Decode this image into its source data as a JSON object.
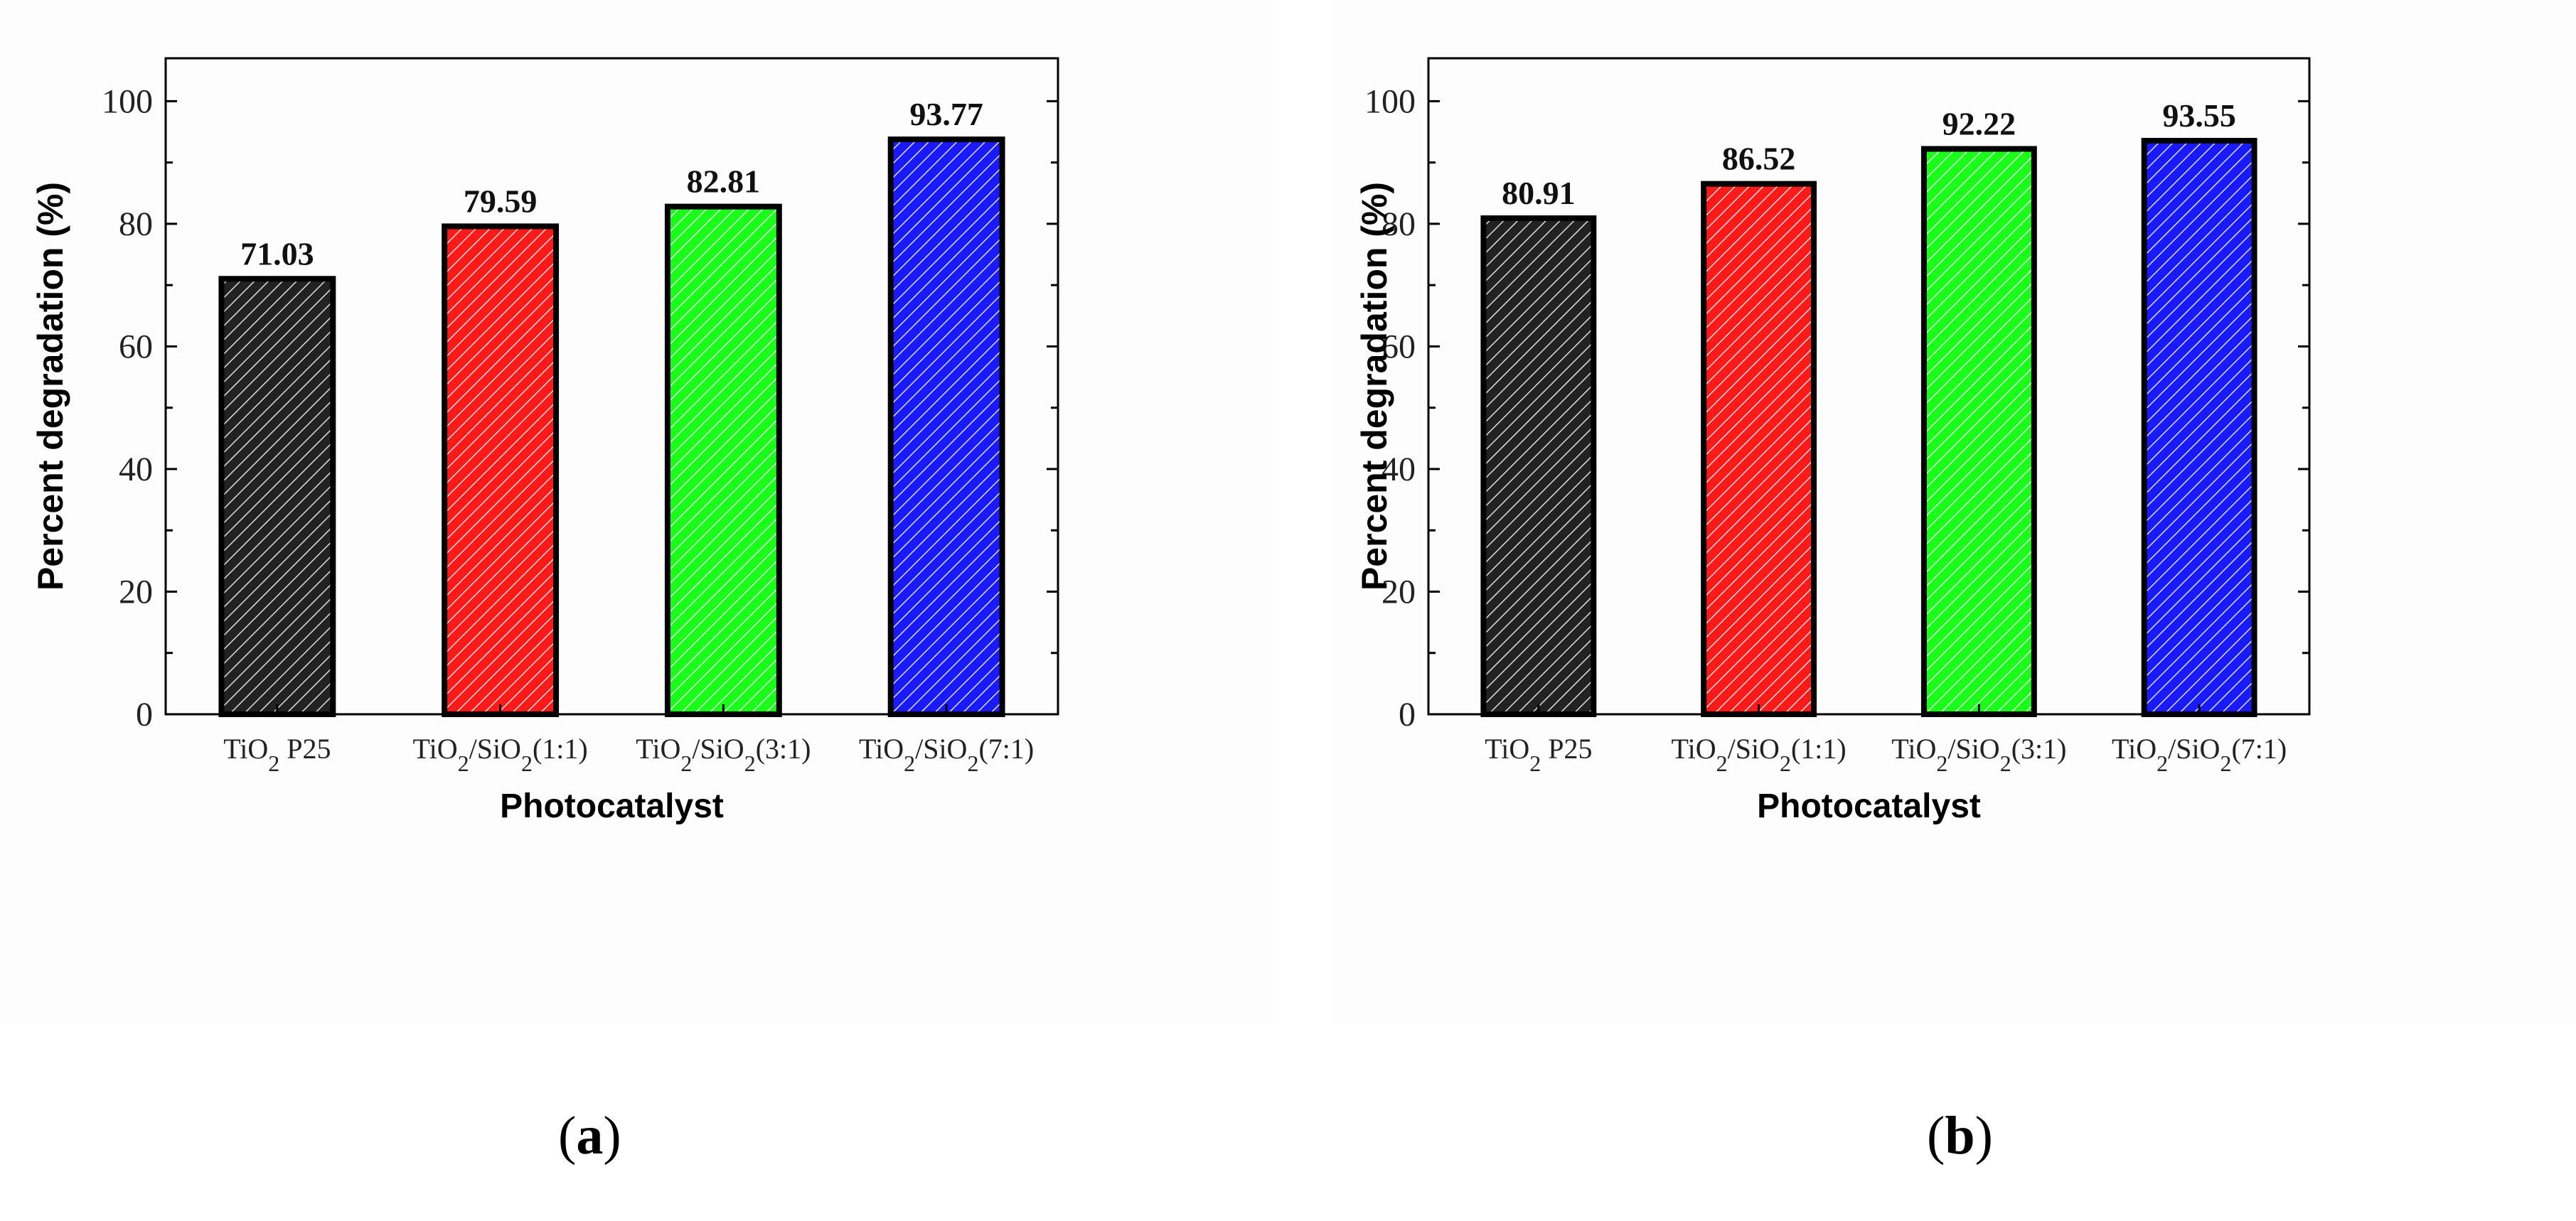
{
  "chart_data": [
    {
      "type": "bar",
      "panel_label": "a",
      "title": "",
      "xlabel": "Photocatalyst",
      "ylabel": "Percent degradation (%)",
      "ylim": [
        0,
        107
      ],
      "yticks": [
        0,
        20,
        40,
        60,
        80,
        100
      ],
      "categories": [
        "TiO2 P25",
        "TiO2/SiO2(1:1)",
        "TiO2/SiO2(3:1)",
        "TiO2/SiO2(7:1)"
      ],
      "category_parts": [
        [
          {
            "t": "TiO",
            "s": false
          },
          {
            "t": "2",
            "s": true
          },
          {
            "t": " P25",
            "s": false
          }
        ],
        [
          {
            "t": "TiO",
            "s": false
          },
          {
            "t": "2",
            "s": true
          },
          {
            "t": "/SiO",
            "s": false
          },
          {
            "t": "2",
            "s": true
          },
          {
            "t": "(1:1)",
            "s": false
          }
        ],
        [
          {
            "t": "TiO",
            "s": false
          },
          {
            "t": "2",
            "s": true
          },
          {
            "t": "/SiO",
            "s": false
          },
          {
            "t": "2",
            "s": true
          },
          {
            "t": "(3:1)",
            "s": false
          }
        ],
        [
          {
            "t": "TiO",
            "s": false
          },
          {
            "t": "2",
            "s": true
          },
          {
            "t": "/SiO",
            "s": false
          },
          {
            "t": "2",
            "s": true
          },
          {
            "t": "(7:1)",
            "s": false
          }
        ]
      ],
      "values": [
        71.03,
        79.59,
        82.81,
        93.77
      ],
      "value_labels": [
        "71.03",
        "79.59",
        "82.81",
        "93.77"
      ],
      "colors": [
        "#222222",
        "#ff1a1a",
        "#1aff1a",
        "#1a1aff"
      ]
    },
    {
      "type": "bar",
      "panel_label": "b",
      "title": "",
      "xlabel": "Photocatalyst",
      "ylabel": "Percent degradation (%)",
      "ylim": [
        0,
        107
      ],
      "yticks": [
        0,
        20,
        40,
        60,
        80,
        100
      ],
      "categories": [
        "TiO2 P25",
        "TiO2/SiO2(1:1)",
        "TiO2/SiO2(3:1)",
        "TiO2/SiO2(7:1)"
      ],
      "category_parts": [
        [
          {
            "t": "TiO",
            "s": false
          },
          {
            "t": "2",
            "s": true
          },
          {
            "t": " P25",
            "s": false
          }
        ],
        [
          {
            "t": "TiO",
            "s": false
          },
          {
            "t": "2",
            "s": true
          },
          {
            "t": "/SiO",
            "s": false
          },
          {
            "t": "2",
            "s": true
          },
          {
            "t": "(1:1)",
            "s": false
          }
        ],
        [
          {
            "t": "TiO",
            "s": false
          },
          {
            "t": "2",
            "s": true
          },
          {
            "t": "/SiO",
            "s": false
          },
          {
            "t": "2",
            "s": true
          },
          {
            "t": "(3:1)",
            "s": false
          }
        ],
        [
          {
            "t": "TiO",
            "s": false
          },
          {
            "t": "2",
            "s": true
          },
          {
            "t": "/SiO",
            "s": false
          },
          {
            "t": "2",
            "s": true
          },
          {
            "t": "(7:1)",
            "s": false
          }
        ]
      ],
      "values": [
        80.91,
        86.52,
        92.22,
        93.55
      ],
      "value_labels": [
        "80.91",
        "86.52",
        "92.22",
        "93.55"
      ],
      "colors": [
        "#222222",
        "#ff1a1a",
        "#1aff1a",
        "#1a1aff"
      ]
    }
  ],
  "captions": {
    "a": {
      "open": "(",
      "label": "a",
      "close": ")"
    },
    "b": {
      "open": "(",
      "label": "b",
      "close": ")"
    }
  }
}
